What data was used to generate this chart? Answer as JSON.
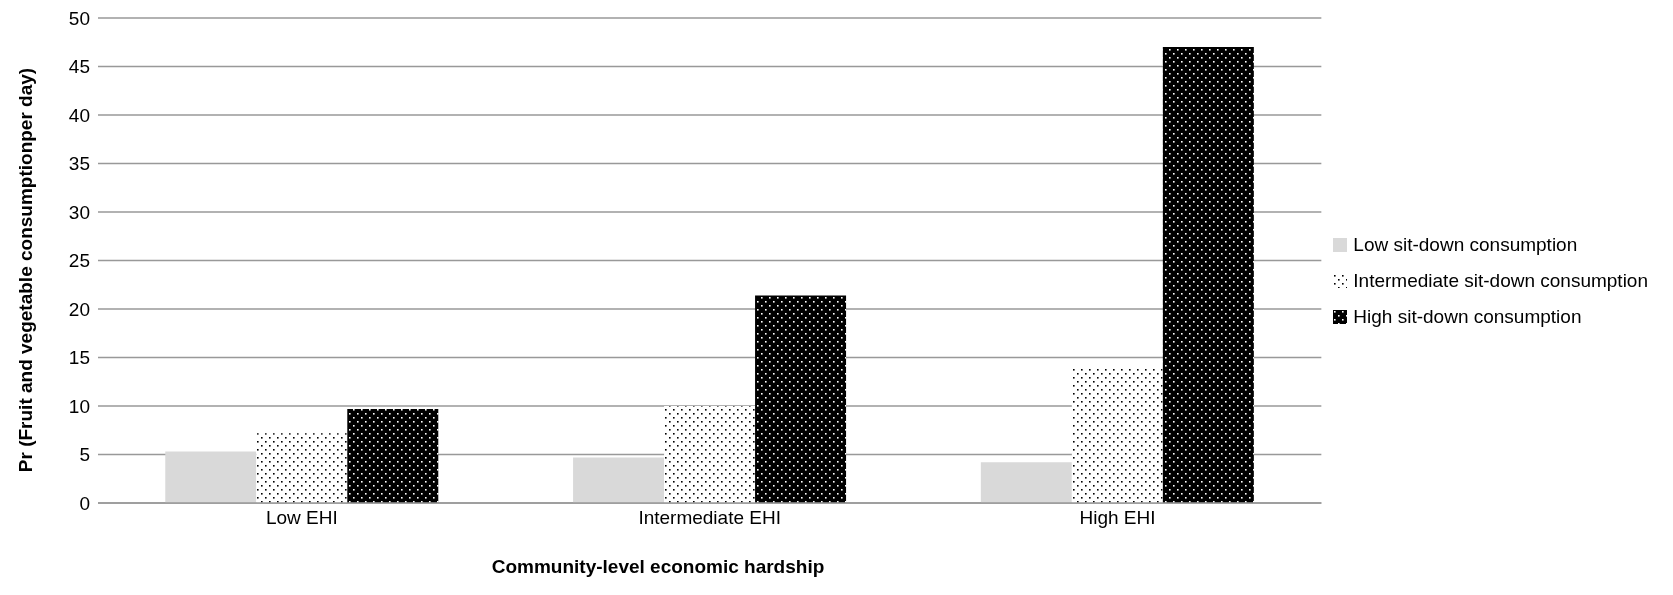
{
  "chart_data": {
    "type": "bar",
    "xlabel": "Community-level economic hardship",
    "ylabel": "Pr (Fruit and vegetable consumptionper day)",
    "categories": [
      "Low EHI",
      "Intermediate EHI",
      "High EHI"
    ],
    "series": [
      {
        "name": "Low sit-down consumption",
        "color": "#d9d9d9",
        "values": [
          5.3,
          4.7,
          4.2
        ]
      },
      {
        "name": "Intermediate sit-down consumption",
        "color": "#ffffff",
        "values": [
          7.2,
          10,
          14
        ]
      },
      {
        "name": "High sit-down consumption",
        "color": "#000000",
        "values": [
          9.7,
          21.4,
          47
        ]
      }
    ],
    "ylim": [
      0,
      50
    ],
    "yticks": [
      0,
      5,
      10,
      15,
      20,
      25,
      30,
      35,
      40,
      45,
      50
    ],
    "grid": "y",
    "legend": "right"
  }
}
